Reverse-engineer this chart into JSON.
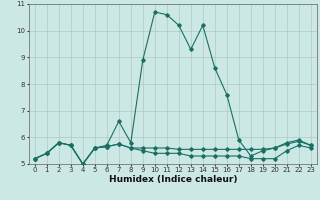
{
  "title": "",
  "xlabel": "Humidex (Indice chaleur)",
  "ylabel": "",
  "background_color": "#cce8e4",
  "grid_color": "#b0c8c4",
  "line_color": "#1a6e64",
  "series": [
    {
      "x": [
        0,
        1,
        2,
        3,
        4,
        5,
        6,
        7,
        8,
        9,
        10,
        11,
        12,
        13,
        14,
        15,
        16,
        17,
        18,
        19,
        20,
        21,
        22,
        23
      ],
      "y": [
        5.2,
        5.4,
        5.8,
        5.7,
        5.0,
        5.6,
        5.7,
        6.6,
        5.8,
        8.9,
        10.7,
        10.6,
        10.2,
        9.3,
        10.2,
        8.6,
        7.6,
        5.9,
        5.3,
        5.5,
        5.6,
        5.8,
        5.9,
        5.7
      ]
    },
    {
      "x": [
        0,
        1,
        2,
        3,
        4,
        5,
        6,
        7,
        8,
        9,
        10,
        11,
        12,
        13,
        14,
        15,
        16,
        17,
        18,
        19,
        20,
        21,
        22,
        23
      ],
      "y": [
        5.2,
        5.4,
        5.8,
        5.7,
        5.0,
        5.6,
        5.65,
        5.75,
        5.6,
        5.6,
        5.6,
        5.6,
        5.55,
        5.55,
        5.55,
        5.55,
        5.55,
        5.55,
        5.55,
        5.55,
        5.6,
        5.75,
        5.85,
        5.7
      ]
    },
    {
      "x": [
        0,
        1,
        2,
        3,
        4,
        5,
        6,
        7,
        8,
        9,
        10,
        11,
        12,
        13,
        14,
        15,
        16,
        17,
        18,
        19,
        20,
        21,
        22,
        23
      ],
      "y": [
        5.2,
        5.4,
        5.8,
        5.7,
        5.0,
        5.6,
        5.65,
        5.75,
        5.6,
        5.5,
        5.4,
        5.4,
        5.4,
        5.3,
        5.3,
        5.3,
        5.3,
        5.3,
        5.2,
        5.2,
        5.2,
        5.5,
        5.7,
        5.6
      ]
    }
  ],
  "ylim": [
    5,
    11
  ],
  "xlim": [
    -0.5,
    23.5
  ],
  "yticks": [
    5,
    6,
    7,
    8,
    9,
    10,
    11
  ],
  "xticks": [
    0,
    1,
    2,
    3,
    4,
    5,
    6,
    7,
    8,
    9,
    10,
    11,
    12,
    13,
    14,
    15,
    16,
    17,
    18,
    19,
    20,
    21,
    22,
    23
  ],
  "marker": "D",
  "markersize": 1.8,
  "linewidth": 0.8,
  "tick_fontsize": 5.0,
  "xlabel_fontsize": 6.5,
  "xlabel_fontweight": "bold"
}
